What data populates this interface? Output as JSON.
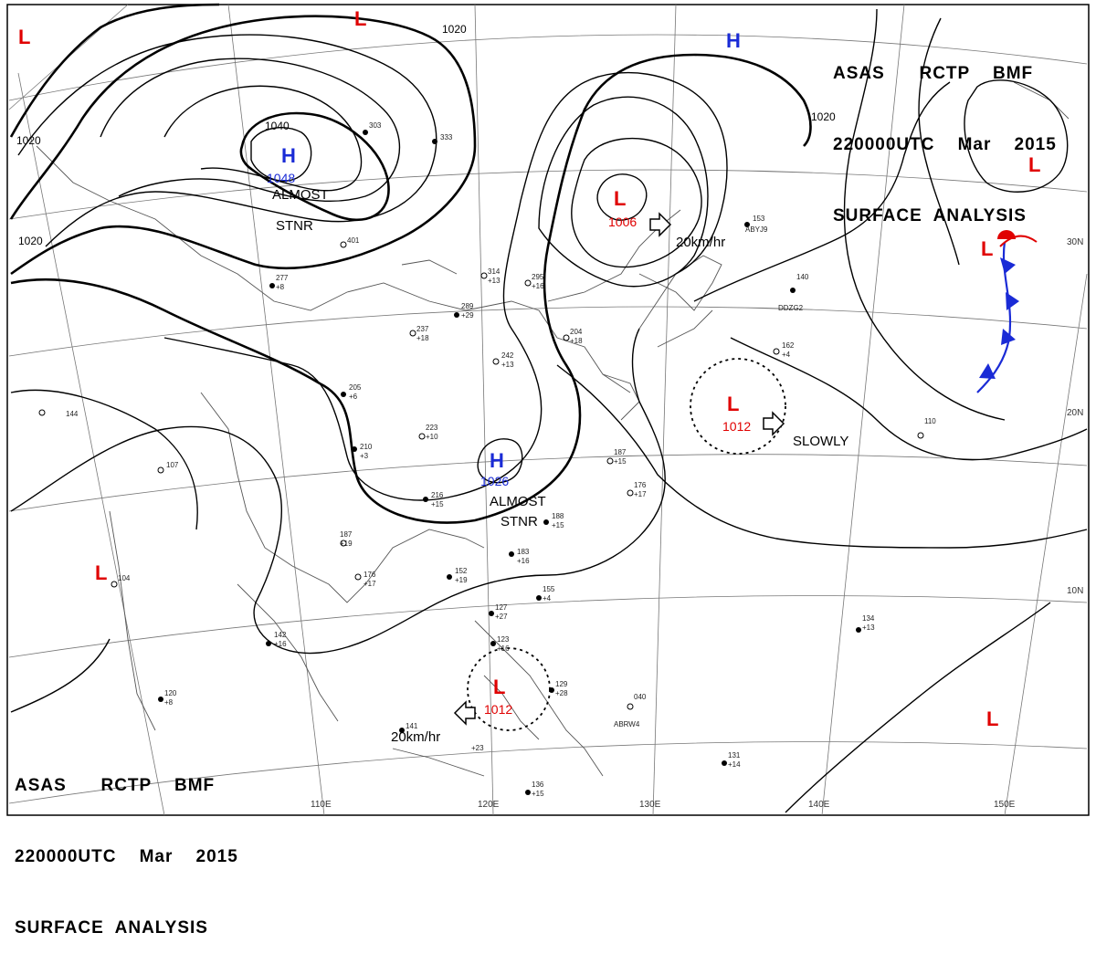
{
  "header": {
    "line1": [
      "ASAS",
      "RCTP",
      "BMF"
    ],
    "line2": [
      "220000UTC",
      "Mar",
      "2015"
    ],
    "line3": "SURFACE  ANALYSIS"
  },
  "lat_labels": [
    "30N",
    "20N",
    "10N"
  ],
  "lon_labels": [
    "110E",
    "120E",
    "130E",
    "140E",
    "150E"
  ],
  "isobar_labels": [
    "1020",
    "1020",
    "1020",
    "1020",
    "1040"
  ],
  "pressure_centers": [
    {
      "kind": "H",
      "value": "1048",
      "note": "ALMOST\nSTNR"
    },
    {
      "kind": "H",
      "value": "1026",
      "note": "ALMOST\nSTNR"
    },
    {
      "kind": "L",
      "value": "1006",
      "motion": "20km/hr"
    },
    {
      "kind": "L",
      "value": "1012",
      "motion": "SLOWLY"
    },
    {
      "kind": "L",
      "value": "1012",
      "motion": "20km/hr"
    },
    {
      "kind": "H",
      "value": ""
    },
    {
      "kind": "L",
      "value": ""
    },
    {
      "kind": "L",
      "value": ""
    },
    {
      "kind": "L",
      "value": ""
    },
    {
      "kind": "L",
      "value": ""
    },
    {
      "kind": "L",
      "value": ""
    },
    {
      "kind": "L",
      "value": ""
    }
  ],
  "station_obs": [
    "187",
    "+19",
    "176",
    "+17",
    "152",
    "+19",
    "183",
    "+16",
    "205",
    "+6",
    "210",
    "+3",
    "223",
    "+10",
    "216",
    "+15",
    "237",
    "+18",
    "289",
    "+29",
    "314",
    "+13",
    "242",
    "+13",
    "295",
    "+16",
    "204",
    "+18",
    "153",
    "ABYJ9",
    "162",
    "+4",
    "140",
    "DDZG2",
    "134",
    "+13",
    "110",
    "131",
    "+14",
    "141",
    "+23",
    "136",
    "+15",
    "129",
    "+28",
    "155",
    "+4",
    "127",
    "+27",
    "123",
    "+16",
    "040",
    "ABRW4",
    "333",
    "401",
    "303",
    "277",
    "+8",
    "188",
    "+15",
    "187",
    "+15",
    "176",
    "+17",
    "107",
    "104",
    "144",
    "142",
    "+16",
    "120",
    "+8"
  ],
  "colors": {
    "high": "#1a2bd6",
    "low": "#e00000",
    "front_cold": "#1a2bd6",
    "front_warm": "#e00000"
  }
}
